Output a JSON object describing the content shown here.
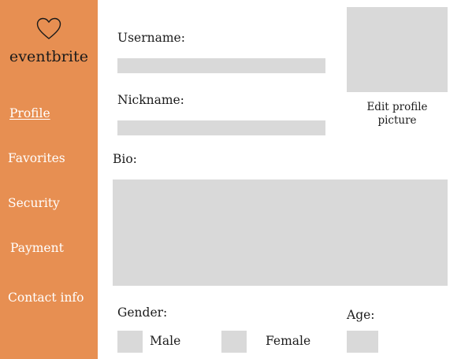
{
  "sidebar": {
    "brand": {
      "icon": "heart-icon",
      "name": "eventbrite"
    },
    "items": [
      {
        "label": "Profile",
        "active": true
      },
      {
        "label": "Favorites",
        "active": false
      },
      {
        "label": "Security",
        "active": false
      },
      {
        "label": "Payment",
        "active": false
      },
      {
        "label": "Contact info",
        "active": false
      }
    ]
  },
  "form": {
    "username": {
      "label": "Username:",
      "value": ""
    },
    "nickname": {
      "label": "Nickname:",
      "value": ""
    },
    "bio": {
      "label": "Bio:",
      "value": ""
    },
    "gender": {
      "label": "Gender:",
      "options": [
        "Male",
        "Female"
      ]
    },
    "age": {
      "label": "Age:",
      "value": ""
    }
  },
  "avatar": {
    "caption": "Edit profile picture"
  },
  "colors": {
    "sidebar_bg": "#e78f52",
    "field_bg": "#d9d9d9",
    "nav_text": "#ffffff"
  }
}
